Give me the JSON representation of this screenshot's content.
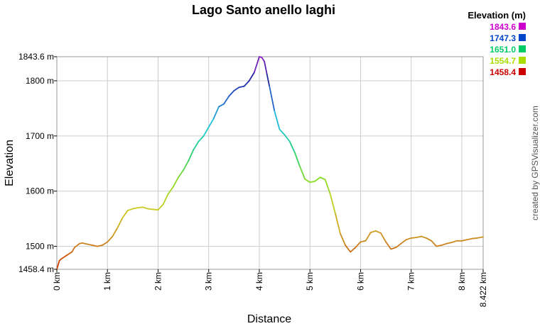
{
  "chart_data": {
    "type": "line",
    "title": "Lago Santo anello laghi",
    "xlabel": "Distance",
    "ylabel": "Elevation",
    "xlim": [
      0,
      8.422
    ],
    "ylim": [
      1458.4,
      1843.6
    ],
    "x_ticks": [
      {
        "value": 0,
        "label": "0 km"
      },
      {
        "value": 1,
        "label": "1 km"
      },
      {
        "value": 2,
        "label": "2 km"
      },
      {
        "value": 3,
        "label": "3 km"
      },
      {
        "value": 4,
        "label": "4 km"
      },
      {
        "value": 5,
        "label": "5 km"
      },
      {
        "value": 6,
        "label": "6 km"
      },
      {
        "value": 7,
        "label": "7 km"
      },
      {
        "value": 8,
        "label": "8 km"
      },
      {
        "value": 8.422,
        "label": "8.422 km"
      }
    ],
    "y_ticks": [
      {
        "value": 1458.4,
        "label": "1458.4 m"
      },
      {
        "value": 1500,
        "label": "1500 m"
      },
      {
        "value": 1600,
        "label": "1600 m"
      },
      {
        "value": 1700,
        "label": "1700 m"
      },
      {
        "value": 1800,
        "label": "1800 m"
      },
      {
        "value": 1843.6,
        "label": "1843.6 m"
      }
    ],
    "grid": true,
    "legend": {
      "title": "Elevation (m)",
      "position": "top-right",
      "entries": [
        {
          "label": "1843.6",
          "color": "#cc00cc"
        },
        {
          "label": "1747.3",
          "color": "#0044cc"
        },
        {
          "label": "1651.0",
          "color": "#00cc66"
        },
        {
          "label": "1554.7",
          "color": "#aadd00"
        },
        {
          "label": "1458.4",
          "color": "#cc0000"
        }
      ]
    },
    "series": [
      {
        "x": [
          0,
          0.05,
          0.1,
          0.2,
          0.3,
          0.35,
          0.45,
          0.5,
          0.6,
          0.7,
          0.8,
          0.9,
          1.0,
          1.1,
          1.2,
          1.3,
          1.4,
          1.5,
          1.6,
          1.7,
          1.8,
          1.9,
          2.0,
          2.1,
          2.2,
          2.3,
          2.4,
          2.5,
          2.6,
          2.7,
          2.8,
          2.9,
          3.0,
          3.1,
          3.2,
          3.3,
          3.4,
          3.5,
          3.6,
          3.7,
          3.8,
          3.9,
          4.0,
          4.05,
          4.1,
          4.15,
          4.2,
          4.3,
          4.4,
          4.5,
          4.6,
          4.7,
          4.8,
          4.9,
          5.0,
          5.1,
          5.2,
          5.3,
          5.4,
          5.5,
          5.6,
          5.7,
          5.8,
          5.9,
          6.0,
          6.1,
          6.2,
          6.3,
          6.4,
          6.5,
          6.6,
          6.7,
          6.8,
          6.9,
          7.0,
          7.1,
          7.2,
          7.3,
          7.4,
          7.5,
          7.6,
          7.7,
          7.8,
          7.9,
          8.0,
          8.1,
          8.2,
          8.3,
          8.422
        ],
        "y": [
          1458.4,
          1474,
          1478,
          1484,
          1490,
          1498,
          1505,
          1506,
          1504,
          1502,
          1500,
          1502,
          1508,
          1518,
          1534,
          1552,
          1565,
          1568,
          1570,
          1571,
          1568,
          1567,
          1566,
          1576,
          1595,
          1608,
          1625,
          1638,
          1655,
          1675,
          1690,
          1700,
          1716,
          1732,
          1753,
          1758,
          1772,
          1782,
          1788,
          1790,
          1800,
          1815,
          1843.6,
          1842,
          1835,
          1812,
          1790,
          1745,
          1712,
          1702,
          1690,
          1670,
          1645,
          1622,
          1616,
          1618,
          1625,
          1621,
          1595,
          1560,
          1523,
          1502,
          1490,
          1498,
          1508,
          1510,
          1525,
          1528,
          1524,
          1508,
          1495,
          1498,
          1505,
          1512,
          1515,
          1516,
          1518,
          1515,
          1510,
          1500,
          1502,
          1505,
          1507,
          1510,
          1510,
          1512,
          1514,
          1515,
          1517
        ]
      }
    ]
  },
  "credit": "created by GPSVisualizer.com"
}
